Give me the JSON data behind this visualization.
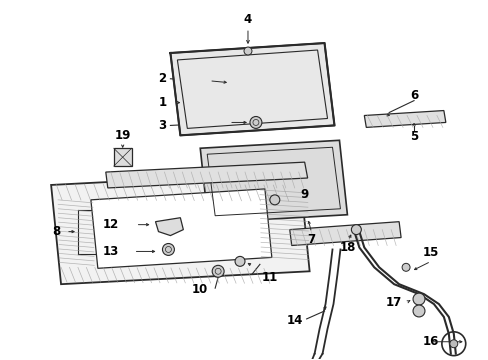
{
  "background_color": "#ffffff",
  "line_color": "#2a2a2a",
  "text_color": "#000000",
  "hatch_color": "#888888"
}
